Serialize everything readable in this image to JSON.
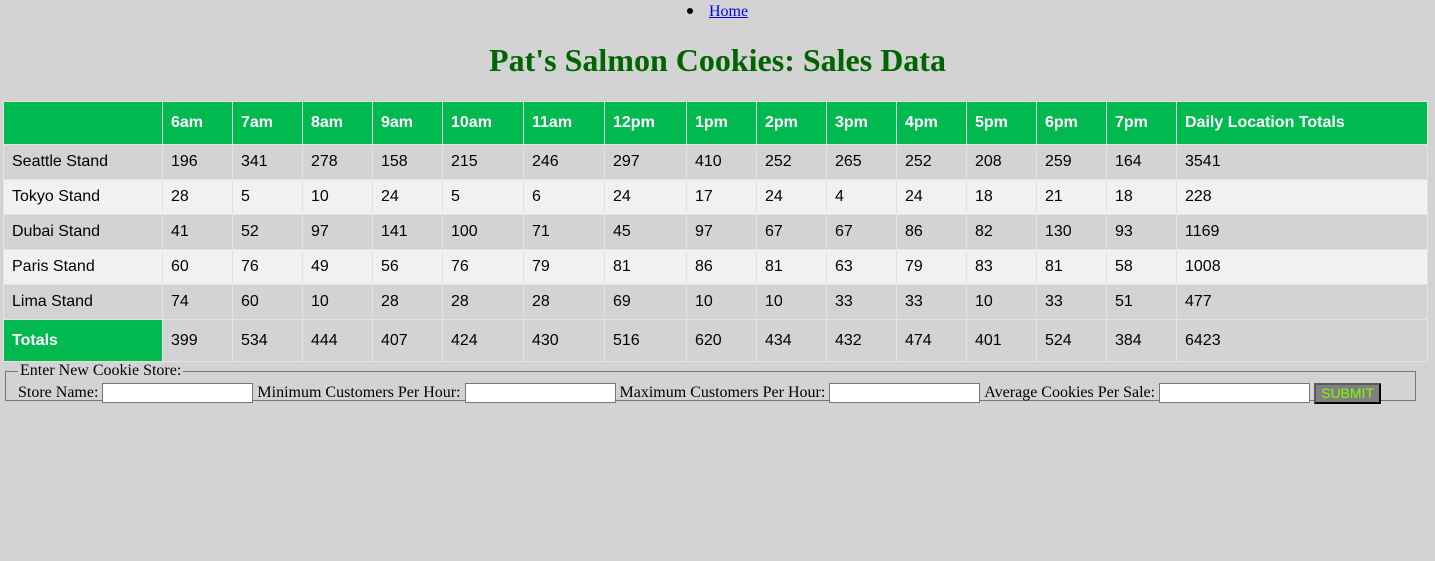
{
  "nav": {
    "home_label": "Home"
  },
  "page_title": "Pat's Salmon Cookies: Sales Data",
  "table": {
    "header_first": "",
    "headers": [
      "6am",
      "7am",
      "8am",
      "9am",
      "10am",
      "11am",
      "12pm",
      "1pm",
      "2pm",
      "3pm",
      "4pm",
      "5pm",
      "6pm",
      "7pm",
      "Daily Location Totals"
    ],
    "rows": [
      {
        "name": "Seattle Stand",
        "values": [
          "196",
          "341",
          "278",
          "158",
          "215",
          "246",
          "297",
          "410",
          "252",
          "265",
          "252",
          "208",
          "259",
          "164",
          "3541"
        ]
      },
      {
        "name": "Tokyo Stand",
        "values": [
          "28",
          "5",
          "10",
          "24",
          "5",
          "6",
          "24",
          "17",
          "24",
          "4",
          "24",
          "18",
          "21",
          "18",
          "228"
        ]
      },
      {
        "name": "Dubai Stand",
        "values": [
          "41",
          "52",
          "97",
          "141",
          "100",
          "71",
          "45",
          "97",
          "67",
          "67",
          "86",
          "82",
          "130",
          "93",
          "1169"
        ]
      },
      {
        "name": "Paris Stand",
        "values": [
          "60",
          "76",
          "49",
          "56",
          "76",
          "79",
          "81",
          "86",
          "81",
          "63",
          "79",
          "83",
          "81",
          "58",
          "1008"
        ]
      },
      {
        "name": "Lima Stand",
        "values": [
          "74",
          "60",
          "10",
          "28",
          "28",
          "28",
          "69",
          "10",
          "10",
          "33",
          "33",
          "10",
          "33",
          "51",
          "477"
        ]
      }
    ],
    "totals_label": "Totals",
    "totals": [
      "399",
      "534",
      "444",
      "407",
      "424",
      "430",
      "516",
      "620",
      "434",
      "432",
      "474",
      "401",
      "524",
      "384",
      "6423"
    ]
  },
  "form": {
    "legend": "Enter New Cookie Store:",
    "store_name_label": "Store Name:",
    "store_name_value": "",
    "min_customers_label": "Minimum Customers Per Hour:",
    "min_customers_value": "",
    "max_customers_label": "Maximum Customers Per Hour:",
    "max_customers_value": "",
    "avg_cookies_label": "Average Cookies Per Sale:",
    "avg_cookies_value": "",
    "submit_label": "SUBMIT"
  },
  "colors": {
    "background": "#d3d3d3",
    "title": "#006400",
    "header_green": "#00b94f",
    "submit_text": "#7fff00"
  }
}
